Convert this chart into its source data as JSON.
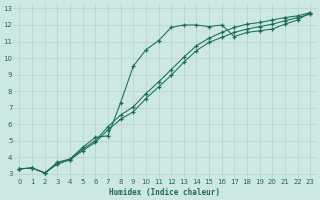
{
  "xlabel": "Humidex (Indice chaleur)",
  "bg_color": "#cde8e2",
  "line_color": "#1a6b5a",
  "grid_color": "#b0d4cc",
  "xlim": [
    -0.5,
    23.5
  ],
  "ylim": [
    2.7,
    13.3
  ],
  "xticks": [
    0,
    1,
    2,
    3,
    4,
    5,
    6,
    7,
    8,
    9,
    10,
    11,
    12,
    13,
    14,
    15,
    16,
    17,
    18,
    19,
    20,
    21,
    22,
    23
  ],
  "yticks": [
    3,
    4,
    5,
    6,
    7,
    8,
    9,
    10,
    11,
    12,
    13
  ],
  "line1_x": [
    0,
    1,
    2,
    3,
    4,
    5,
    6,
    7,
    8,
    9,
    10,
    11,
    12,
    13,
    14,
    15,
    16,
    17,
    18,
    19,
    20,
    21,
    22,
    23
  ],
  "line1_y": [
    3.3,
    3.35,
    3.05,
    3.7,
    3.9,
    4.6,
    5.2,
    5.3,
    7.3,
    9.5,
    10.5,
    11.05,
    11.85,
    12.0,
    12.0,
    11.9,
    12.0,
    11.3,
    11.55,
    11.65,
    11.75,
    12.05,
    12.3,
    12.75
  ],
  "line2_x": [
    0,
    1,
    2,
    3,
    4,
    5,
    6,
    7,
    8,
    9,
    10,
    11,
    12,
    13,
    14,
    15,
    16,
    17,
    18,
    19,
    20,
    21,
    22,
    23
  ],
  "line2_y": [
    3.3,
    3.35,
    3.05,
    3.6,
    3.85,
    4.5,
    5.0,
    5.85,
    6.55,
    7.05,
    7.85,
    8.55,
    9.3,
    10.05,
    10.75,
    11.2,
    11.55,
    11.85,
    12.05,
    12.15,
    12.3,
    12.45,
    12.55,
    12.75
  ],
  "line3_x": [
    0,
    1,
    2,
    3,
    4,
    5,
    6,
    7,
    8,
    9,
    10,
    11,
    12,
    13,
    14,
    15,
    16,
    17,
    18,
    19,
    20,
    21,
    22,
    23
  ],
  "line3_y": [
    3.3,
    3.35,
    3.05,
    3.6,
    3.85,
    4.4,
    4.9,
    5.65,
    6.3,
    6.75,
    7.55,
    8.25,
    8.95,
    9.75,
    10.45,
    10.95,
    11.25,
    11.55,
    11.75,
    11.9,
    12.05,
    12.25,
    12.45,
    12.65
  ]
}
